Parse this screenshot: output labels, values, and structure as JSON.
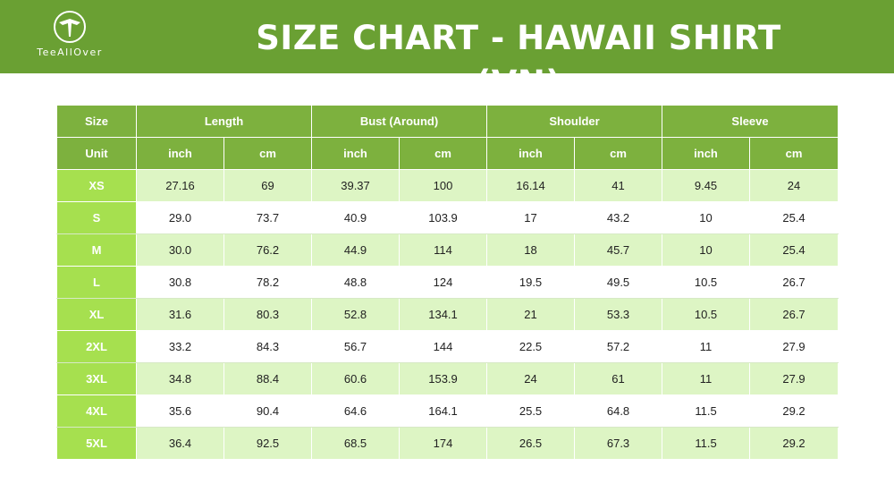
{
  "brand": {
    "name": "TeeAllOver",
    "logo_icon": "tee-arrow-logo-icon"
  },
  "title": "SIZE CHART - HAWAII SHIRT (VN)",
  "colors": {
    "header_bg": "#6aa033",
    "table_header_bg": "#7db13e",
    "size_cell_bg": "#a6e04f",
    "row_alt_bg": "#ddf5c4"
  },
  "table": {
    "groups": [
      "Size",
      "Length",
      "Bust (Around)",
      "Shoulder",
      "Sleeve"
    ],
    "units": [
      "Unit",
      "inch",
      "cm",
      "inch",
      "cm",
      "inch",
      "cm",
      "inch",
      "cm"
    ],
    "rows": [
      [
        "XS",
        "27.16",
        "69",
        "39.37",
        "100",
        "16.14",
        "41",
        "9.45",
        "24"
      ],
      [
        "S",
        "29.0",
        "73.7",
        "40.9",
        "103.9",
        "17",
        "43.2",
        "10",
        "25.4"
      ],
      [
        "M",
        "30.0",
        "76.2",
        "44.9",
        "114",
        "18",
        "45.7",
        "10",
        "25.4"
      ],
      [
        "L",
        "30.8",
        "78.2",
        "48.8",
        "124",
        "19.5",
        "49.5",
        "10.5",
        "26.7"
      ],
      [
        "XL",
        "31.6",
        "80.3",
        "52.8",
        "134.1",
        "21",
        "53.3",
        "10.5",
        "26.7"
      ],
      [
        "2XL",
        "33.2",
        "84.3",
        "56.7",
        "144",
        "22.5",
        "57.2",
        "11",
        "27.9"
      ],
      [
        "3XL",
        "34.8",
        "88.4",
        "60.6",
        "153.9",
        "24",
        "61",
        "11",
        "27.9"
      ],
      [
        "4XL",
        "35.6",
        "90.4",
        "64.6",
        "164.1",
        "25.5",
        "64.8",
        "11.5",
        "29.2"
      ],
      [
        "5XL",
        "36.4",
        "92.5",
        "68.5",
        "174",
        "26.5",
        "67.3",
        "11.5",
        "29.2"
      ]
    ]
  }
}
